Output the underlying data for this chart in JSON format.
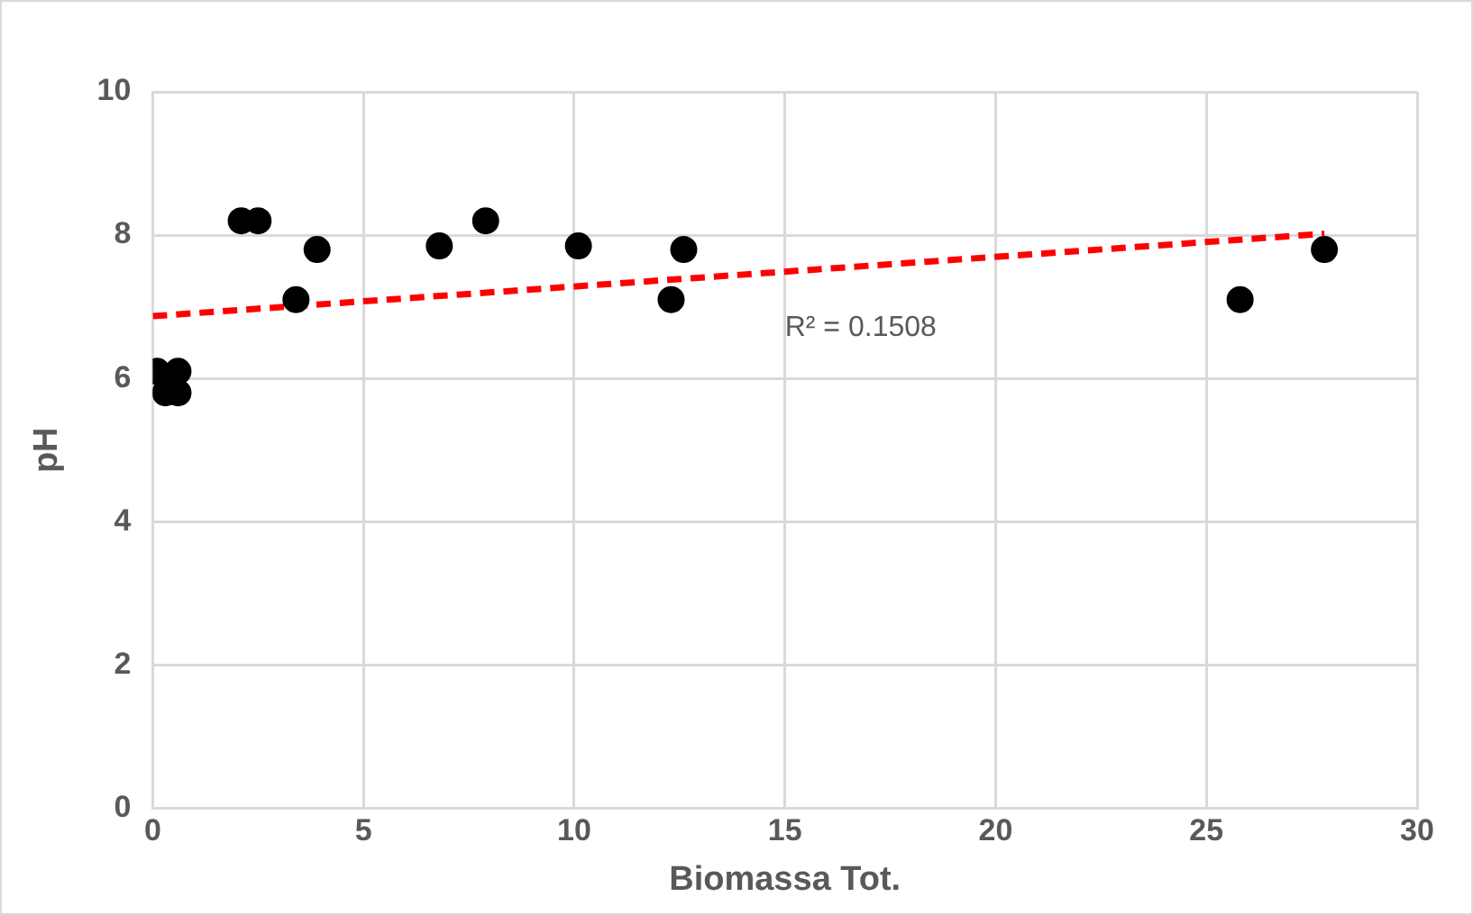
{
  "chart_data": {
    "type": "scatter",
    "xlabel": "Biomassa Tot.",
    "ylabel": "pH",
    "xlim": [
      0,
      30
    ],
    "xticks": [
      0,
      5,
      10,
      15,
      20,
      25,
      30
    ],
    "ylim": [
      0,
      10
    ],
    "yticks": [
      0,
      2,
      4,
      6,
      8,
      10
    ],
    "grid": true,
    "legend": false,
    "marker": "circle",
    "series": [
      {
        "type": "scatter",
        "color": "#000000",
        "x": [
          0.1,
          0.3,
          0.6,
          0.6,
          2.1,
          2.5,
          3.4,
          3.9,
          6.8,
          7.9,
          10.1,
          12.3,
          12.6,
          25.8,
          27.8
        ],
        "values": [
          6.1,
          5.8,
          6.1,
          5.8,
          8.2,
          8.2,
          7.1,
          7.8,
          7.85,
          8.2,
          7.85,
          7.1,
          7.8,
          7.1,
          7.8
        ]
      },
      {
        "type": "line",
        "color": "#ff0000",
        "line_style": "dashed",
        "marker": "none",
        "x": [
          0,
          27.8
        ],
        "values": [
          6.87,
          8.02
        ]
      }
    ],
    "annotations": [
      "R² = 0.1508"
    ]
  }
}
